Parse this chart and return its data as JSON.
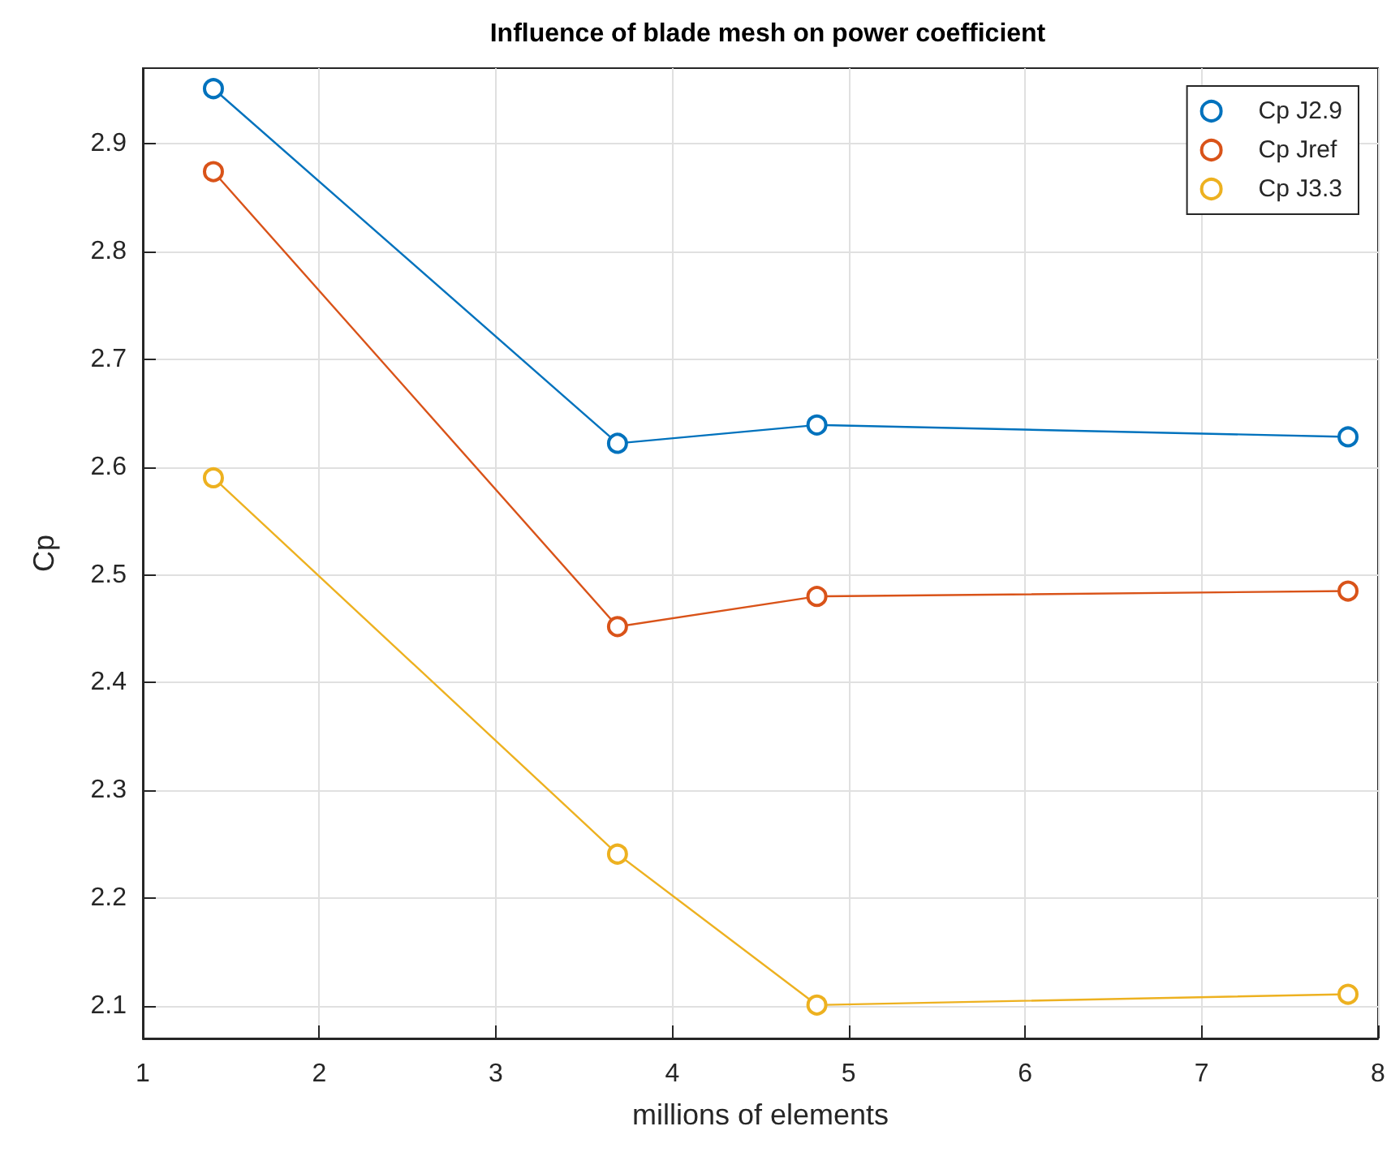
{
  "chart_data": {
    "type": "line",
    "title": "Influence of blade mesh on power coefficient",
    "xlabel": "millions of elements",
    "ylabel": "Cp",
    "x": [
      1.4,
      3.69,
      4.82,
      7.83
    ],
    "series": [
      {
        "name": "Cp J2.9",
        "color": "#0072bd",
        "values": [
          2.951,
          2.622,
          2.639,
          2.628
        ]
      },
      {
        "name": "Cp Jref",
        "color": "#d95319",
        "values": [
          2.874,
          2.452,
          2.48,
          2.485
        ]
      },
      {
        "name": "Cp J3.3",
        "color": "#edb120",
        "values": [
          2.59,
          2.241,
          2.101,
          2.111
        ]
      }
    ],
    "xlim": [
      1,
      8
    ],
    "xticks": [
      1,
      2,
      3,
      4,
      5,
      6,
      7,
      8
    ],
    "ylim": [
      2.07,
      2.97
    ],
    "yticks": [
      2.1,
      2.2,
      2.3,
      2.4,
      2.5,
      2.6,
      2.7,
      2.8,
      2.9
    ],
    "grid": true,
    "legend": "top right",
    "marker": "circle",
    "line_style": "solid"
  }
}
